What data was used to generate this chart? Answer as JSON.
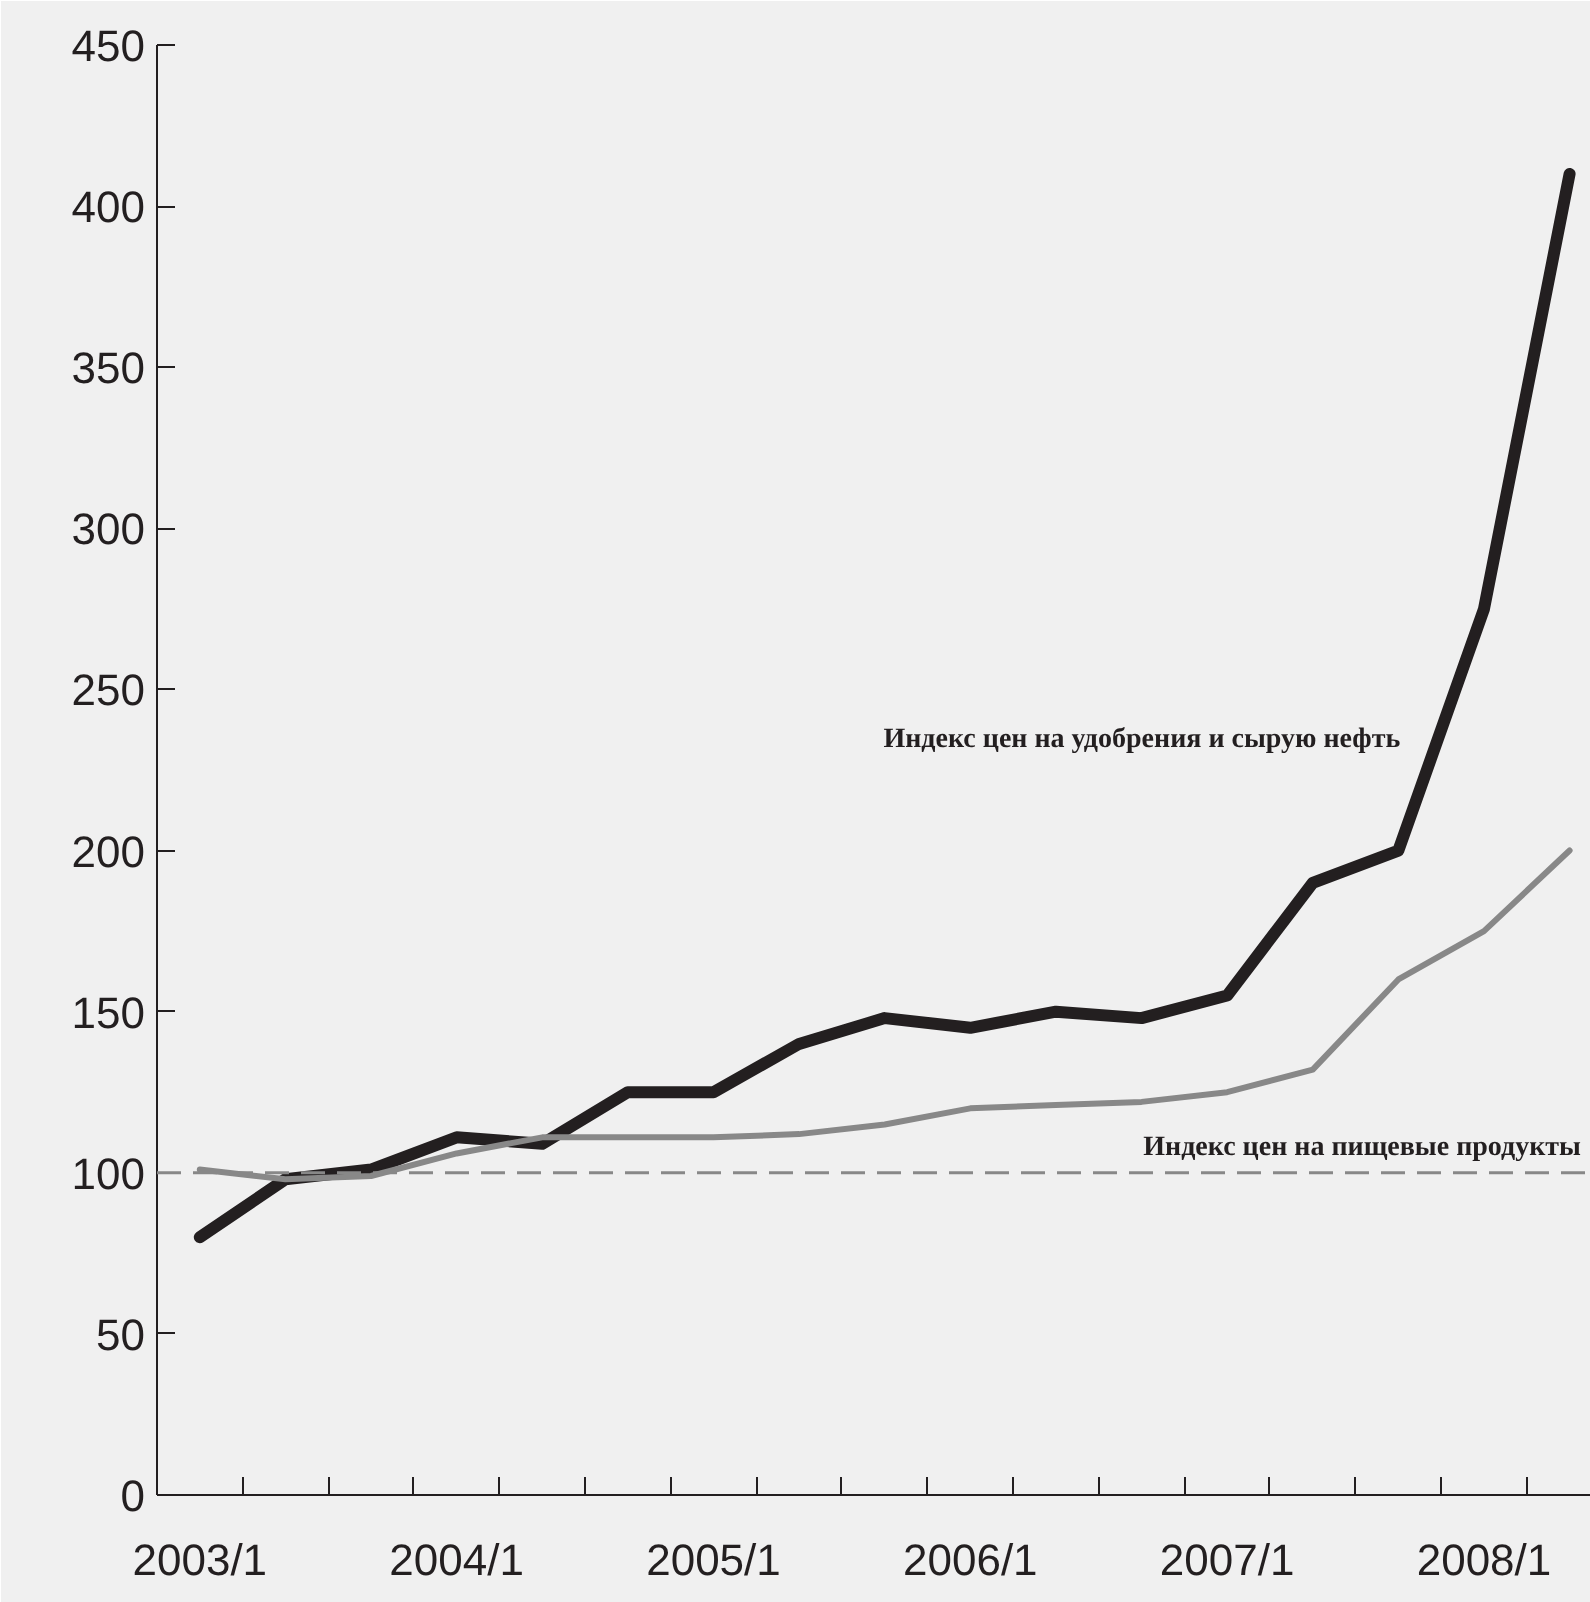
{
  "chart_data": {
    "type": "line",
    "x": [
      "2003-01",
      "2003-05",
      "2003-09",
      "2004-01",
      "2004-05",
      "2004-09",
      "2005-01",
      "2005-05",
      "2005-09",
      "2006-01",
      "2006-05",
      "2006-09",
      "2007-01",
      "2007-05",
      "2007-09",
      "2008-01",
      "2008-05"
    ],
    "series": [
      {
        "color": "#231f20",
        "values": [
          80,
          98,
          101,
          111,
          109,
          125,
          125,
          140,
          148,
          145,
          150,
          148,
          155,
          190,
          200,
          275,
          410
        ]
      },
      {
        "color": "#888888",
        "values": [
          101,
          98,
          99,
          106,
          111,
          111,
          111,
          112,
          115,
          120,
          121,
          122,
          125,
          132,
          160,
          175,
          200
        ]
      }
    ],
    "xlim": [
      "2002-11",
      "2008-06"
    ],
    "xticks": [
      {
        "value": "2003-01",
        "label": "2003/1"
      },
      {
        "value": "2004-01",
        "label": "2004/1"
      },
      {
        "value": "2005-01",
        "label": "2005/1"
      },
      {
        "value": "2006-01",
        "label": "2006/1"
      },
      {
        "value": "2007-01",
        "label": "2007/1"
      },
      {
        "value": "2008-01",
        "label": "2008/1"
      },
      {
        "value": "2003-03",
        "label": null
      },
      {
        "value": "2003-07",
        "label": null
      },
      {
        "value": "2003-11",
        "label": null
      },
      {
        "value": "2004-03",
        "label": null
      },
      {
        "value": "2004-07",
        "label": null
      },
      {
        "value": "2004-11",
        "label": null
      },
      {
        "value": "2005-03",
        "label": null
      },
      {
        "value": "2005-07",
        "label": null
      },
      {
        "value": "2005-11",
        "label": null
      },
      {
        "value": "2006-03",
        "label": null
      },
      {
        "value": "2006-07",
        "label": null
      },
      {
        "value": "2006-11",
        "label": null
      },
      {
        "value": "2007-03",
        "label": null
      },
      {
        "value": "2007-07",
        "label": null
      },
      {
        "value": "2007-11",
        "label": null
      },
      {
        "value": "2008-03",
        "label": null
      }
    ],
    "ylim": [
      0,
      450
    ],
    "yticks": [
      0,
      50,
      100,
      150,
      200,
      250,
      300,
      350,
      400,
      450
    ],
    "grid": false,
    "marker": "none",
    "line_style": "solid",
    "ref_lines": [
      {
        "axis": "y",
        "value": 100,
        "label": null,
        "color": "#888888",
        "line_style": "dashed"
      }
    ],
    "annotations": [
      "Индекс цен на удобрения и сырую нефть",
      "Индекс цен на пищевые продукты"
    ]
  }
}
